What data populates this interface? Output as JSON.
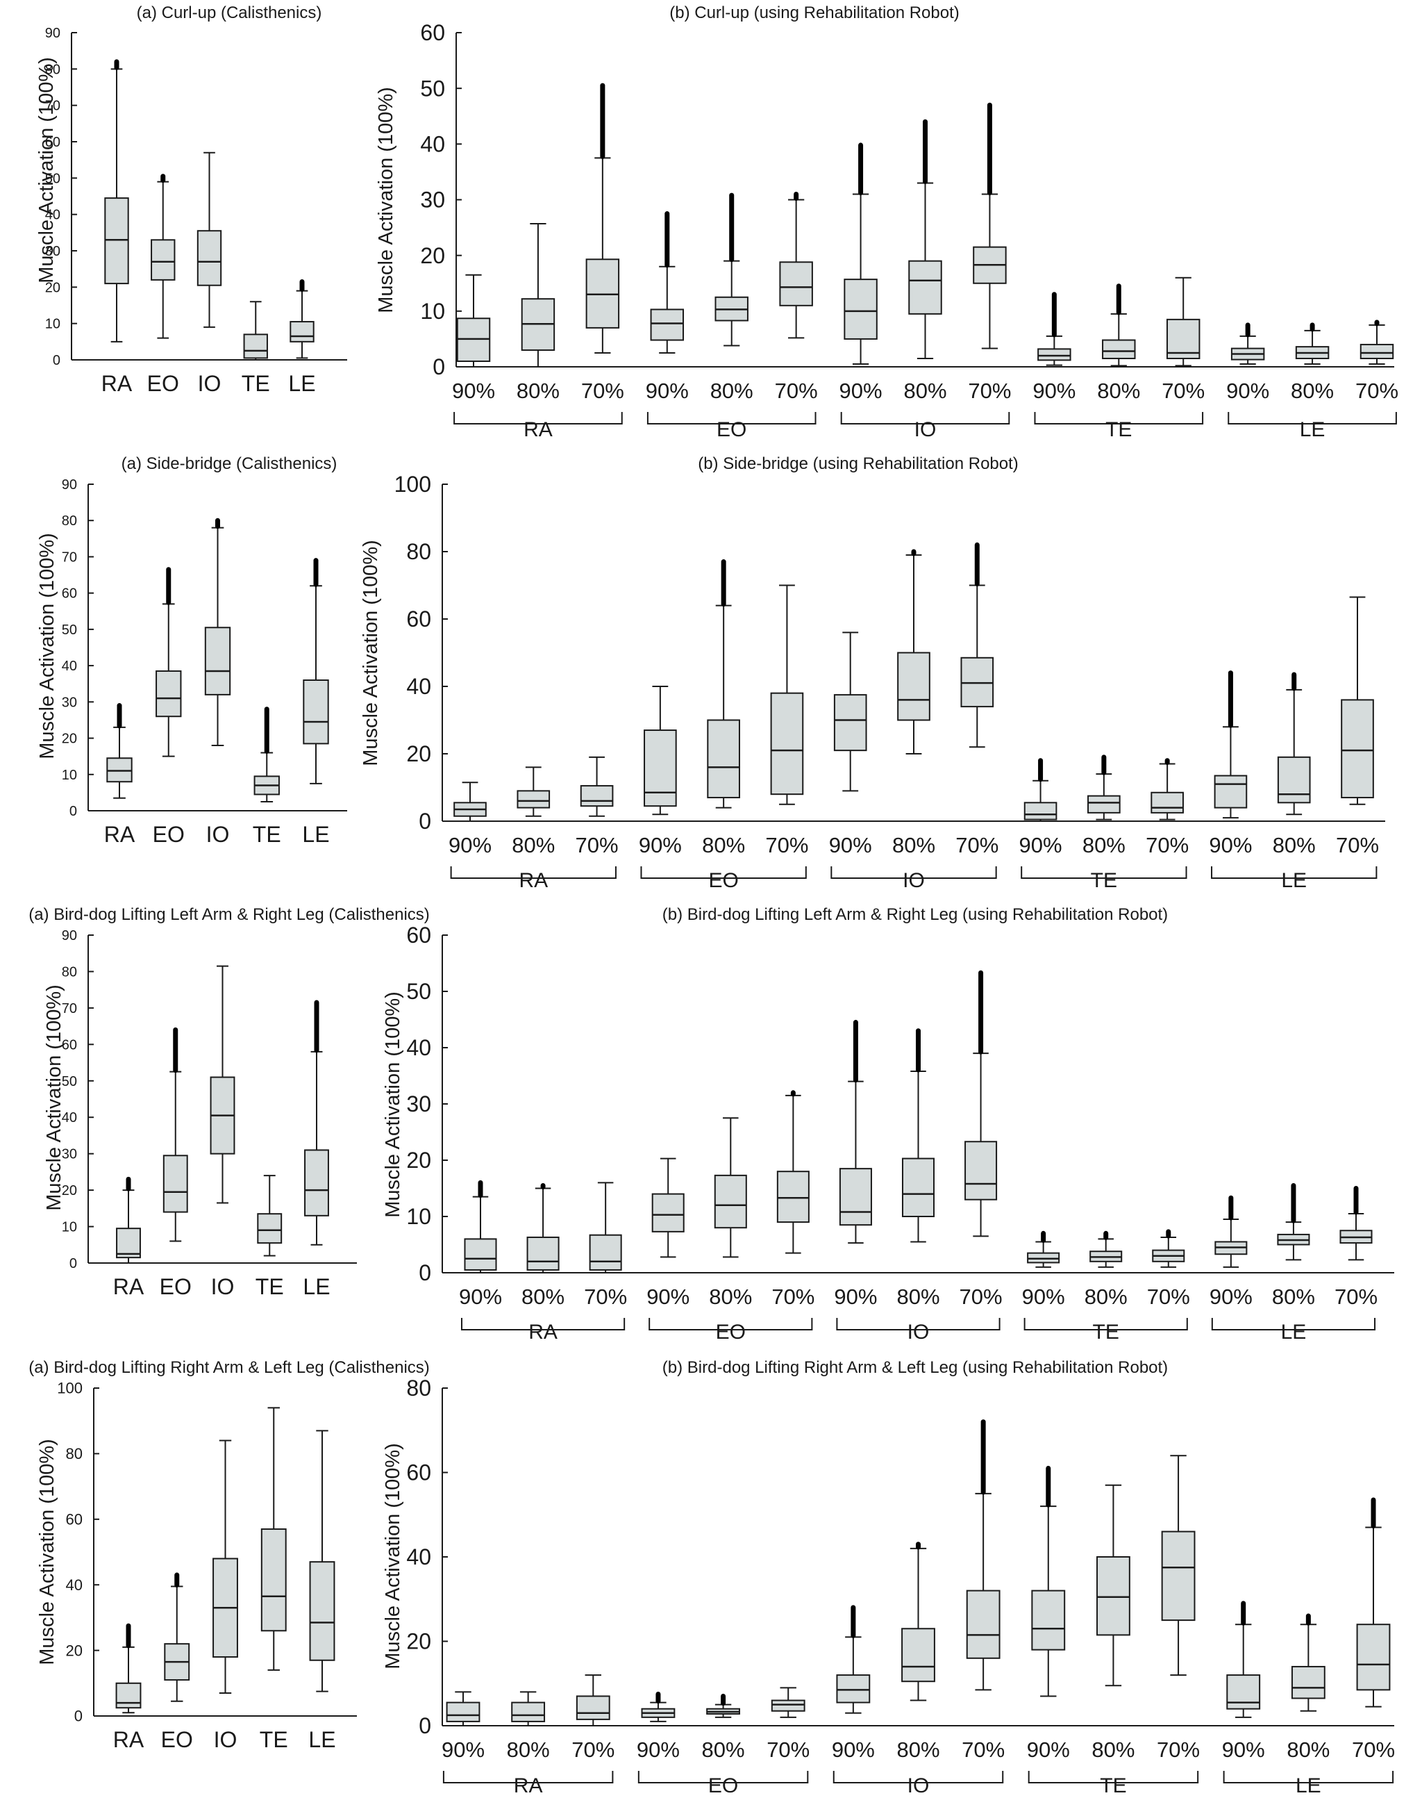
{
  "figure": {
    "colors": {
      "box_fill": "#d6dcdc",
      "ink": "#1a1a1a",
      "background": "#ffffff"
    }
  },
  "chart_data": [
    {
      "id": "curlup-cal",
      "type": "box",
      "title": "(a) Curl-up (Calisthenics)",
      "ylabel": "Muscle Activation (100%)",
      "ylim": [
        0,
        90
      ],
      "yticks": [
        0,
        10,
        20,
        30,
        40,
        50,
        60,
        70,
        80,
        90
      ],
      "categories": [
        "RA",
        "EO",
        "IO",
        "TE",
        "LE"
      ],
      "boxes": [
        {
          "min": 5,
          "q1": 21,
          "median": 33,
          "q3": 44.5,
          "max": 80,
          "outlier_top": 82
        },
        {
          "min": 6,
          "q1": 22,
          "median": 27,
          "q3": 33,
          "max": 49,
          "outlier_top": 50.5
        },
        {
          "min": 9,
          "q1": 20.5,
          "median": 27,
          "q3": 35.5,
          "max": 57,
          "outlier_top": null
        },
        {
          "min": 0,
          "q1": 0.5,
          "median": 2.5,
          "q3": 7,
          "max": 16,
          "outlier_top": null
        },
        {
          "min": 0.5,
          "q1": 5,
          "median": 6.5,
          "q3": 10.5,
          "max": 19,
          "outlier_top": 21.5
        }
      ]
    },
    {
      "id": "curlup-robot",
      "type": "box",
      "title": "(b) Curl-up (using Rehabilitation Robot)",
      "ylabel": "Muscle Activation (100%)",
      "ylim": [
        0,
        60
      ],
      "yticks": [
        0,
        10,
        20,
        30,
        40,
        50,
        60
      ],
      "categories": [
        "90%",
        "80%",
        "70%",
        "90%",
        "80%",
        "70%",
        "90%",
        "80%",
        "70%",
        "90%",
        "80%",
        "70%",
        "90%",
        "80%",
        "70%"
      ],
      "groups": [
        "RA",
        "EO",
        "IO",
        "TE",
        "LE"
      ],
      "boxes": [
        {
          "min": 0,
          "q1": 1,
          "median": 5,
          "q3": 8.7,
          "max": 16.5,
          "outlier_top": null
        },
        {
          "min": 0,
          "q1": 3,
          "median": 7.7,
          "q3": 12.2,
          "max": 25.7,
          "outlier_top": null
        },
        {
          "min": 2.5,
          "q1": 7,
          "median": 13,
          "q3": 19.3,
          "max": 37.5,
          "outlier_top": 50.5
        },
        {
          "min": 2.5,
          "q1": 4.8,
          "median": 7.8,
          "q3": 10.3,
          "max": 18,
          "outlier_top": 27.5
        },
        {
          "min": 3.8,
          "q1": 8.3,
          "median": 10.3,
          "q3": 12.5,
          "max": 19,
          "outlier_top": 30.8
        },
        {
          "min": 5.2,
          "q1": 11,
          "median": 14.3,
          "q3": 18.8,
          "max": 30,
          "outlier_top": 31
        },
        {
          "min": 0.5,
          "q1": 5,
          "median": 10,
          "q3": 15.7,
          "max": 31,
          "outlier_top": 39.8
        },
        {
          "min": 1.5,
          "q1": 9.5,
          "median": 15.5,
          "q3": 19,
          "max": 33,
          "outlier_top": 44
        },
        {
          "min": 3.3,
          "q1": 15,
          "median": 18.3,
          "q3": 21.5,
          "max": 31,
          "outlier_top": 47
        },
        {
          "min": 0.3,
          "q1": 1.2,
          "median": 2,
          "q3": 3.2,
          "max": 5.5,
          "outlier_top": 13
        },
        {
          "min": 0.2,
          "q1": 1.5,
          "median": 2.8,
          "q3": 4.8,
          "max": 9.5,
          "outlier_top": 14.5
        },
        {
          "min": 0.2,
          "q1": 1.5,
          "median": 2.5,
          "q3": 8.5,
          "max": 16,
          "outlier_top": null
        },
        {
          "min": 0.5,
          "q1": 1.3,
          "median": 2.3,
          "q3": 3.3,
          "max": 5.5,
          "outlier_top": 7.5
        },
        {
          "min": 0.5,
          "q1": 1.5,
          "median": 2.5,
          "q3": 3.6,
          "max": 6.5,
          "outlier_top": 7.5
        },
        {
          "min": 0.5,
          "q1": 1.5,
          "median": 2.5,
          "q3": 4,
          "max": 7.5,
          "outlier_top": 8
        }
      ]
    },
    {
      "id": "sidebridge-cal",
      "type": "box",
      "title": "(a) Side-bridge (Calisthenics)",
      "ylabel": "Muscle Activation (100%)",
      "ylim": [
        0,
        90
      ],
      "yticks": [
        0,
        10,
        20,
        30,
        40,
        50,
        60,
        70,
        80,
        90
      ],
      "categories": [
        "RA",
        "EO",
        "IO",
        "TE",
        "LE"
      ],
      "boxes": [
        {
          "min": 3.5,
          "q1": 8,
          "median": 11,
          "q3": 14.5,
          "max": 23,
          "outlier_top": 29
        },
        {
          "min": 15,
          "q1": 26,
          "median": 31,
          "q3": 38.5,
          "max": 57,
          "outlier_top": 66.5
        },
        {
          "min": 18,
          "q1": 32,
          "median": 38.5,
          "q3": 50.5,
          "max": 78,
          "outlier_top": 80
        },
        {
          "min": 2.5,
          "q1": 4.5,
          "median": 7,
          "q3": 9.5,
          "max": 16,
          "outlier_top": 28
        },
        {
          "min": 7.5,
          "q1": 18.5,
          "median": 24.5,
          "q3": 36,
          "max": 62,
          "outlier_top": 69
        }
      ]
    },
    {
      "id": "sidebridge-robot",
      "type": "box",
      "title": "(b) Side-bridge (using Rehabilitation Robot)",
      "ylabel": "Muscle Activation (100%)",
      "ylim": [
        0,
        100
      ],
      "yticks": [
        0,
        20,
        40,
        60,
        80,
        100
      ],
      "categories": [
        "90%",
        "80%",
        "70%",
        "90%",
        "80%",
        "70%",
        "90%",
        "80%",
        "70%",
        "90%",
        "80%",
        "70%",
        "90%",
        "80%",
        "70%"
      ],
      "groups": [
        "RA",
        "EO",
        "IO",
        "TE",
        "LE"
      ],
      "boxes": [
        {
          "min": 0,
          "q1": 1.5,
          "median": 3.5,
          "q3": 5.5,
          "max": 11.5,
          "outlier_top": null
        },
        {
          "min": 1.5,
          "q1": 4,
          "median": 6,
          "q3": 9,
          "max": 16,
          "outlier_top": null
        },
        {
          "min": 1.5,
          "q1": 4.5,
          "median": 6,
          "q3": 10.5,
          "max": 19,
          "outlier_top": null
        },
        {
          "min": 2,
          "q1": 4.5,
          "median": 8.5,
          "q3": 27,
          "max": 40,
          "outlier_top": null
        },
        {
          "min": 4,
          "q1": 7,
          "median": 16,
          "q3": 30,
          "max": 64,
          "outlier_top": 77
        },
        {
          "min": 5,
          "q1": 8,
          "median": 21,
          "q3": 38,
          "max": 70,
          "outlier_top": null
        },
        {
          "min": 9,
          "q1": 21,
          "median": 30,
          "q3": 37.5,
          "max": 56,
          "outlier_top": null
        },
        {
          "min": 20,
          "q1": 30,
          "median": 36,
          "q3": 50,
          "max": 79,
          "outlier_top": 80
        },
        {
          "min": 22,
          "q1": 34,
          "median": 41,
          "q3": 48.5,
          "max": 70,
          "outlier_top": 82
        },
        {
          "min": 0,
          "q1": 0.5,
          "median": 2,
          "q3": 5.5,
          "max": 12,
          "outlier_top": 18
        },
        {
          "min": 0.5,
          "q1": 2.5,
          "median": 5.5,
          "q3": 7.5,
          "max": 14,
          "outlier_top": 19
        },
        {
          "min": 0.5,
          "q1": 2.5,
          "median": 4,
          "q3": 8.5,
          "max": 17,
          "outlier_top": 18
        },
        {
          "min": 1,
          "q1": 4,
          "median": 11,
          "q3": 13.5,
          "max": 28,
          "outlier_top": 44
        },
        {
          "min": 2,
          "q1": 5.5,
          "median": 8,
          "q3": 19,
          "max": 39,
          "outlier_top": 43.5
        },
        {
          "min": 5,
          "q1": 7,
          "median": 21,
          "q3": 36,
          "max": 66.5,
          "outlier_top": null
        }
      ]
    },
    {
      "id": "birddog-lr-cal",
      "type": "box",
      "title": "(a) Bird-dog Lifting Left Arm & Right Leg (Calisthenics)",
      "ylabel": "Muscle Activation (100%)",
      "ylim": [
        0,
        90
      ],
      "yticks": [
        0,
        10,
        20,
        30,
        40,
        50,
        60,
        70,
        80,
        90
      ],
      "categories": [
        "RA",
        "EO",
        "IO",
        "TE",
        "LE"
      ],
      "boxes": [
        {
          "min": 0,
          "q1": 1.5,
          "median": 2.5,
          "q3": 9.5,
          "max": 20,
          "outlier_top": 23
        },
        {
          "min": 6,
          "q1": 14,
          "median": 19.5,
          "q3": 29.5,
          "max": 52.5,
          "outlier_top": 64
        },
        {
          "min": 16.5,
          "q1": 30,
          "median": 40.5,
          "q3": 51,
          "max": 81.5,
          "outlier_top": null
        },
        {
          "min": 2,
          "q1": 5.5,
          "median": 9,
          "q3": 13.5,
          "max": 24,
          "outlier_top": null
        },
        {
          "min": 5,
          "q1": 13,
          "median": 20,
          "q3": 31,
          "max": 58,
          "outlier_top": 71.5
        }
      ]
    },
    {
      "id": "birddog-lr-robot",
      "type": "box",
      "title": "(b) Bird-dog Lifting Left Arm & Right Leg (using Rehabilitation Robot)",
      "ylabel": "Muscle Activation (100%)",
      "ylim": [
        0,
        60
      ],
      "yticks": [
        0,
        10,
        20,
        30,
        40,
        50,
        60
      ],
      "categories": [
        "90%",
        "80%",
        "70%",
        "90%",
        "80%",
        "70%",
        "90%",
        "80%",
        "70%",
        "90%",
        "80%",
        "70%",
        "90%",
        "80%",
        "70%"
      ],
      "groups": [
        "RA",
        "EO",
        "IO",
        "TE",
        "LE"
      ],
      "boxes": [
        {
          "min": 0,
          "q1": 0.5,
          "median": 2.5,
          "q3": 6,
          "max": 13.5,
          "outlier_top": 16
        },
        {
          "min": 0,
          "q1": 0.5,
          "median": 2,
          "q3": 6.3,
          "max": 15,
          "outlier_top": 15.5
        },
        {
          "min": 0,
          "q1": 0.5,
          "median": 2,
          "q3": 6.7,
          "max": 16,
          "outlier_top": null
        },
        {
          "min": 2.8,
          "q1": 7.3,
          "median": 10.3,
          "q3": 14,
          "max": 20.3,
          "outlier_top": null
        },
        {
          "min": 2.8,
          "q1": 8,
          "median": 12,
          "q3": 17.3,
          "max": 27.5,
          "outlier_top": null
        },
        {
          "min": 3.5,
          "q1": 9,
          "median": 13.3,
          "q3": 18,
          "max": 31.5,
          "outlier_top": 32
        },
        {
          "min": 5.3,
          "q1": 8.5,
          "median": 10.8,
          "q3": 18.5,
          "max": 34,
          "outlier_top": 44.5
        },
        {
          "min": 5.5,
          "q1": 10,
          "median": 14,
          "q3": 20.3,
          "max": 35.8,
          "outlier_top": 43
        },
        {
          "min": 6.5,
          "q1": 13,
          "median": 15.8,
          "q3": 23.3,
          "max": 39,
          "outlier_top": 53.3
        },
        {
          "min": 1,
          "q1": 1.8,
          "median": 2.5,
          "q3": 3.5,
          "max": 5.5,
          "outlier_top": 7
        },
        {
          "min": 1,
          "q1": 2,
          "median": 2.8,
          "q3": 3.8,
          "max": 6,
          "outlier_top": 7
        },
        {
          "min": 1,
          "q1": 2,
          "median": 3,
          "q3": 4,
          "max": 6.3,
          "outlier_top": 7.3
        },
        {
          "min": 1,
          "q1": 3.3,
          "median": 4.5,
          "q3": 5.5,
          "max": 9.5,
          "outlier_top": 13.3
        },
        {
          "min": 2.3,
          "q1": 5,
          "median": 5.8,
          "q3": 6.8,
          "max": 9,
          "outlier_top": 15.5
        },
        {
          "min": 2.3,
          "q1": 5.3,
          "median": 6.3,
          "q3": 7.5,
          "max": 10.5,
          "outlier_top": 15
        }
      ]
    },
    {
      "id": "birddog-rl-cal",
      "type": "box",
      "title": "(a) Bird-dog Lifting Right Arm & Left Leg (Calisthenics)",
      "ylabel": "Muscle Activation (100%)",
      "ylim": [
        0,
        100
      ],
      "yticks": [
        0,
        20,
        40,
        60,
        80,
        100
      ],
      "categories": [
        "RA",
        "EO",
        "IO",
        "TE",
        "LE"
      ],
      "boxes": [
        {
          "min": 1,
          "q1": 2.5,
          "median": 4,
          "q3": 10,
          "max": 21,
          "outlier_top": 27.5
        },
        {
          "min": 4.5,
          "q1": 11,
          "median": 16.5,
          "q3": 22,
          "max": 39.5,
          "outlier_top": 43
        },
        {
          "min": 7,
          "q1": 18,
          "median": 33,
          "q3": 48,
          "max": 84,
          "outlier_top": null
        },
        {
          "min": 14,
          "q1": 26,
          "median": 36.5,
          "q3": 57,
          "max": 94,
          "outlier_top": null
        },
        {
          "min": 7.5,
          "q1": 17,
          "median": 28.5,
          "q3": 47,
          "max": 87,
          "outlier_top": null
        }
      ]
    },
    {
      "id": "birddog-rl-robot",
      "type": "box",
      "title": "(b) Bird-dog Lifting Right Arm & Left Leg (using Rehabilitation Robot)",
      "ylabel": "Muscle Activation (100%)",
      "ylim": [
        0,
        80
      ],
      "yticks": [
        0,
        20,
        40,
        60,
        80
      ],
      "categories": [
        "90%",
        "80%",
        "70%",
        "90%",
        "80%",
        "70%",
        "90%",
        "80%",
        "70%",
        "90%",
        "80%",
        "70%",
        "90%",
        "80%",
        "70%"
      ],
      "groups": [
        "RA",
        "EO",
        "IO",
        "TE",
        "LE"
      ],
      "boxes": [
        {
          "min": 0,
          "q1": 1,
          "median": 2.5,
          "q3": 5.5,
          "max": 8,
          "outlier_top": null
        },
        {
          "min": 0,
          "q1": 1,
          "median": 2.5,
          "q3": 5.5,
          "max": 8,
          "outlier_top": null
        },
        {
          "min": 0,
          "q1": 1.5,
          "median": 3,
          "q3": 7,
          "max": 12,
          "outlier_top": null
        },
        {
          "min": 1,
          "q1": 2,
          "median": 3,
          "q3": 4,
          "max": 5.5,
          "outlier_top": 7.5
        },
        {
          "min": 2,
          "q1": 2.8,
          "median": 3.3,
          "q3": 4,
          "max": 5,
          "outlier_top": 7
        },
        {
          "min": 2,
          "q1": 3.5,
          "median": 5,
          "q3": 6,
          "max": 9,
          "outlier_top": null
        },
        {
          "min": 3,
          "q1": 5.5,
          "median": 8.5,
          "q3": 12,
          "max": 21,
          "outlier_top": 28
        },
        {
          "min": 6,
          "q1": 10.5,
          "median": 14,
          "q3": 23,
          "max": 42,
          "outlier_top": 43
        },
        {
          "min": 8.5,
          "q1": 16,
          "median": 21.5,
          "q3": 32,
          "max": 55,
          "outlier_top": 72
        },
        {
          "min": 7,
          "q1": 18,
          "median": 23,
          "q3": 32,
          "max": 52,
          "outlier_top": 61
        },
        {
          "min": 9.5,
          "q1": 21.5,
          "median": 30.5,
          "q3": 40,
          "max": 57,
          "outlier_top": null
        },
        {
          "min": 12,
          "q1": 25,
          "median": 37.5,
          "q3": 46,
          "max": 64,
          "outlier_top": null
        },
        {
          "min": 2,
          "q1": 4,
          "median": 5.5,
          "q3": 12,
          "max": 24,
          "outlier_top": 29
        },
        {
          "min": 3.5,
          "q1": 6.5,
          "median": 9,
          "q3": 14,
          "max": 24,
          "outlier_top": 26
        },
        {
          "min": 4.5,
          "q1": 8.5,
          "median": 14.5,
          "q3": 24,
          "max": 47,
          "outlier_top": 53.5
        }
      ]
    }
  ]
}
